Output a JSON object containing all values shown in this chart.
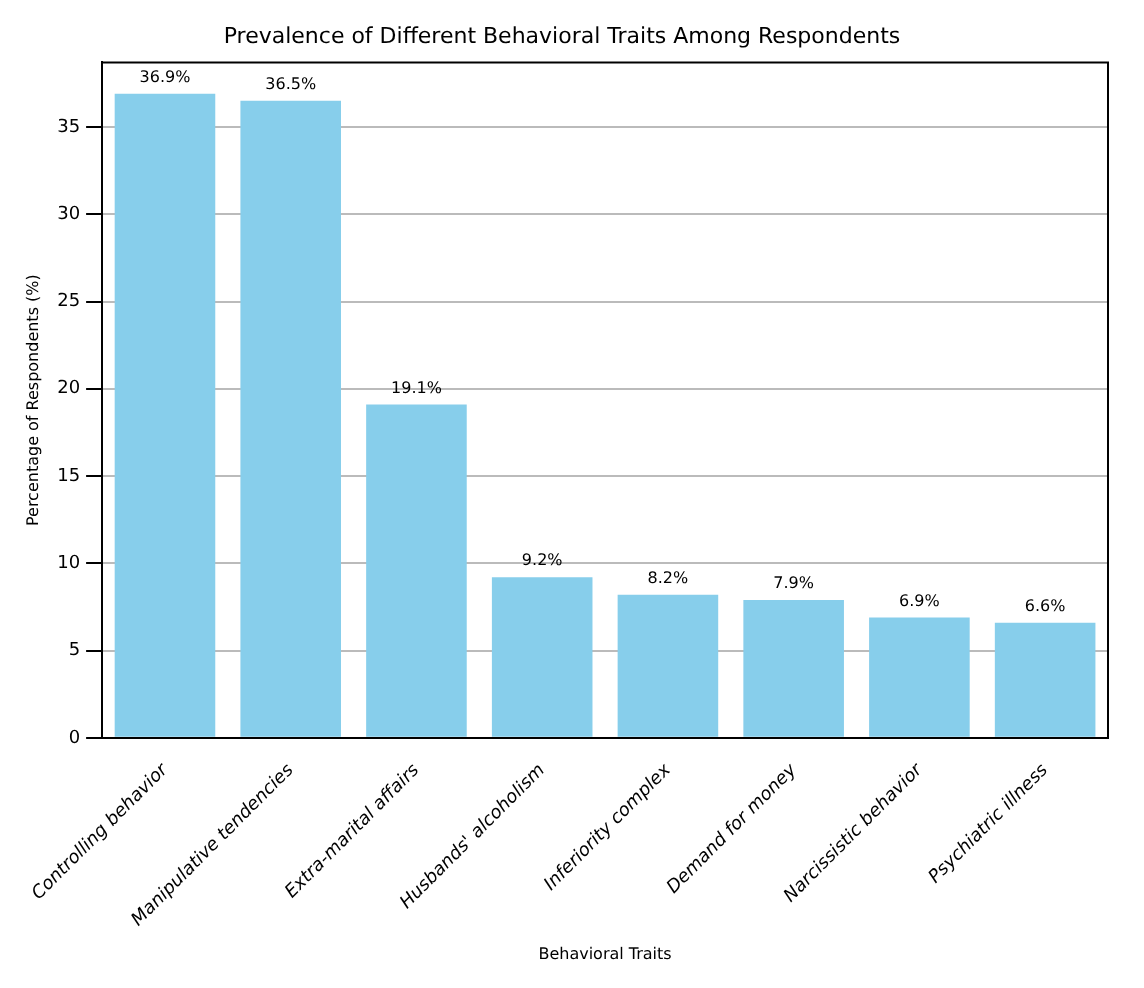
{
  "chart_data": {
    "type": "bar",
    "title": "Prevalence of Different Behavioral Traits Among Respondents",
    "xlabel": "Behavioral Traits",
    "ylabel": "Percentage of Respondents (%)",
    "categories": [
      "Controlling behavior",
      "Manipulative tendencies",
      "Extra-marital affairs",
      "Husbands' alcoholism",
      "Inferiority complex",
      "Demand for money",
      "Narcissistic behavior",
      "Psychiatric illness"
    ],
    "values": [
      36.9,
      36.5,
      19.1,
      9.2,
      8.2,
      7.9,
      6.9,
      6.6
    ],
    "value_labels": [
      "36.9%",
      "36.5%",
      "19.1%",
      "9.2%",
      "8.2%",
      "7.9%",
      "6.9%",
      "6.6%"
    ],
    "color": "#87ceeb",
    "ylim": [
      0,
      38.7
    ],
    "yticks": [
      0,
      5,
      10,
      15,
      20,
      25,
      30,
      35
    ],
    "grid": "y",
    "legend": false
  }
}
